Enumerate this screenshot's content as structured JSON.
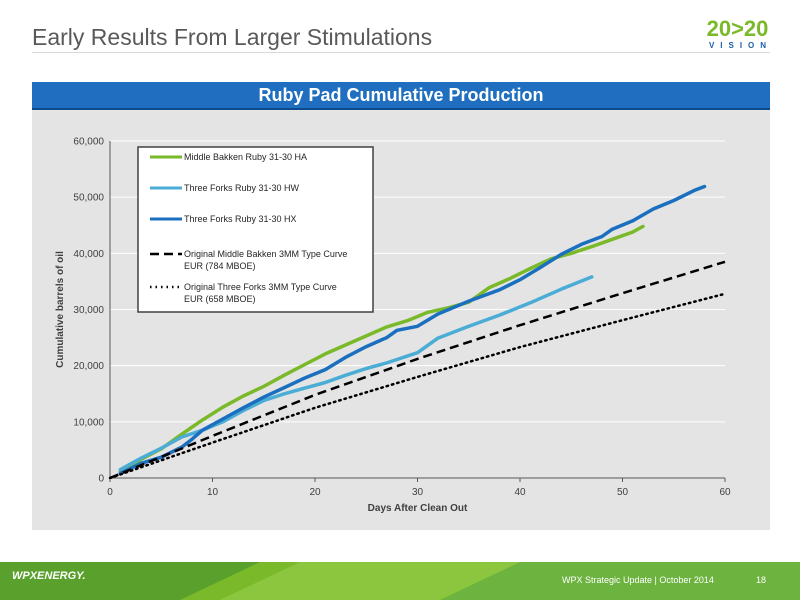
{
  "slide": {
    "title": "Early Results From Larger Stimulations",
    "banner": "Ruby Pad Cumulative Production",
    "footer_text": "WPX Strategic Update | October 2014",
    "page_number": "18",
    "company_logo": "WPXENERGY.",
    "vision_logo_main": "20>20",
    "vision_logo_sub": "VISION"
  },
  "colors": {
    "green": "#7ab929",
    "light_blue": "#4bacd6",
    "dark_blue": "#1b6fbf",
    "banner": "#1f6ebf",
    "panel": "#e4e4e4"
  },
  "chart_data": {
    "type": "line",
    "xlabel": "Days After Clean Out",
    "ylabel": "Cumulative barrels of oil",
    "xlim": [
      0,
      60
    ],
    "ylim": [
      0,
      60000
    ],
    "xticks": [
      "0",
      "10",
      "20",
      "30",
      "40",
      "50",
      "60"
    ],
    "yticks": [
      "0",
      "10,000",
      "20,000",
      "30,000",
      "40,000",
      "50,000",
      "60,000"
    ],
    "grid": "horizontal",
    "legend_position": "top-left",
    "series": [
      {
        "name": "Middle Bakken Ruby 31-30 HA",
        "color": "#7ab929",
        "style": "solid",
        "points": [
          [
            1,
            1200
          ],
          [
            3,
            3300
          ],
          [
            5,
            5200
          ],
          [
            7,
            7800
          ],
          [
            9,
            10300
          ],
          [
            11,
            12600
          ],
          [
            13,
            14600
          ],
          [
            15,
            16300
          ],
          [
            17,
            18300
          ],
          [
            19,
            20200
          ],
          [
            21,
            22100
          ],
          [
            23,
            23700
          ],
          [
            25,
            25300
          ],
          [
            27,
            26900
          ],
          [
            29,
            28000
          ],
          [
            31,
            29500
          ],
          [
            33,
            30300
          ],
          [
            35,
            31300
          ],
          [
            37,
            33900
          ],
          [
            39,
            35500
          ],
          [
            41,
            37300
          ],
          [
            43,
            39000
          ],
          [
            45,
            40000
          ],
          [
            47,
            41200
          ],
          [
            49,
            42500
          ],
          [
            51,
            43800
          ],
          [
            52,
            44800
          ]
        ]
      },
      {
        "name": "Three Forks Ruby 31-30 HW",
        "color": "#4bacd6",
        "style": "solid",
        "points": [
          [
            1,
            1500
          ],
          [
            3,
            3500
          ],
          [
            5,
            5300
          ],
          [
            7,
            7300
          ],
          [
            9,
            8500
          ],
          [
            11,
            10000
          ],
          [
            13,
            12000
          ],
          [
            15,
            13800
          ],
          [
            17,
            15000
          ],
          [
            19,
            16000
          ],
          [
            21,
            17000
          ],
          [
            23,
            18300
          ],
          [
            25,
            19500
          ],
          [
            27,
            20500
          ],
          [
            30,
            22300
          ],
          [
            32,
            24900
          ],
          [
            35,
            27000
          ],
          [
            38,
            29000
          ],
          [
            41,
            31200
          ],
          [
            44,
            33600
          ],
          [
            47,
            35800
          ]
        ]
      },
      {
        "name": "Three Forks Ruby 31-30 HX",
        "color": "#1b6fbf",
        "style": "solid",
        "points": [
          [
            1,
            800
          ],
          [
            3,
            2600
          ],
          [
            5,
            3700
          ],
          [
            7,
            5500
          ],
          [
            8,
            6900
          ],
          [
            9,
            8500
          ],
          [
            11,
            10500
          ],
          [
            13,
            12500
          ],
          [
            15,
            14400
          ],
          [
            17,
            16100
          ],
          [
            19,
            17800
          ],
          [
            21,
            19300
          ],
          [
            23,
            21500
          ],
          [
            25,
            23400
          ],
          [
            27,
            25000
          ],
          [
            28,
            26300
          ],
          [
            30,
            27000
          ],
          [
            32,
            29200
          ],
          [
            35,
            31500
          ],
          [
            38,
            33500
          ],
          [
            40,
            35300
          ],
          [
            42,
            37500
          ],
          [
            44,
            39800
          ],
          [
            46,
            41600
          ],
          [
            48,
            43000
          ],
          [
            49,
            44300
          ],
          [
            51,
            45800
          ],
          [
            53,
            47900
          ],
          [
            55,
            49400
          ],
          [
            57,
            51200
          ],
          [
            58,
            51900
          ]
        ]
      },
      {
        "name": "Original Middle Bakken 3MM Type Curve EUR (784 MBOE)",
        "color": "#000000",
        "style": "dashed",
        "points": [
          [
            0,
            0
          ],
          [
            10,
            7500
          ],
          [
            20,
            14800
          ],
          [
            30,
            21200
          ],
          [
            40,
            27200
          ],
          [
            50,
            32900
          ],
          [
            60,
            38500
          ]
        ]
      },
      {
        "name": "Original Three Forks 3MM Type Curve EUR (658 MBOE)",
        "color": "#000000",
        "style": "dotted",
        "points": [
          [
            0,
            0
          ],
          [
            10,
            6300
          ],
          [
            20,
            12500
          ],
          [
            30,
            18000
          ],
          [
            40,
            23300
          ],
          [
            50,
            28100
          ],
          [
            60,
            32800
          ]
        ]
      }
    ]
  }
}
